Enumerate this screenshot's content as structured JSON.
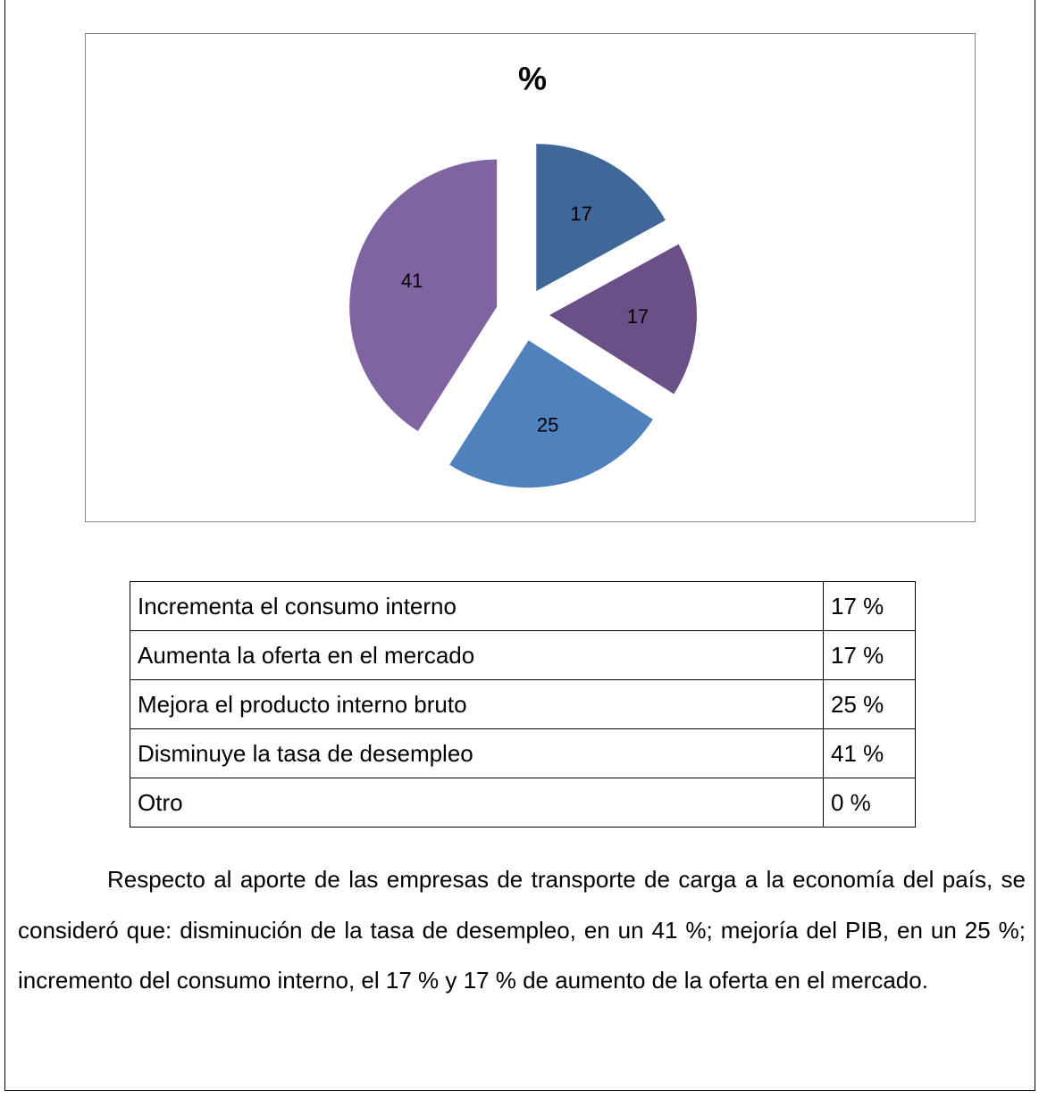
{
  "chart_data": {
    "type": "pie",
    "title": "%",
    "values": [
      17,
      17,
      25,
      41
    ],
    "colors": [
      "#3f6797",
      "#6a5087",
      "#4f81bd",
      "#8064a2"
    ]
  },
  "table": {
    "rows": [
      [
        "Incrementa el consumo interno",
        "17 %"
      ],
      [
        "Aumenta la oferta en el mercado",
        "17 %"
      ],
      [
        "Mejora el producto interno bruto",
        "25 %"
      ],
      [
        "Disminuye la tasa de desempleo",
        "41 %"
      ],
      [
        "Otro",
        "0 %"
      ]
    ]
  },
  "paragraph": "Respecto al aporte de las empresas de transporte de carga a la economía del país, se consideró que: disminución de la tasa de desempleo, en un 41 %; mejoría del PIB, en un 25 %; incremento del consumo interno, el 17 % y 17 % de aumento de la oferta en el mercado."
}
